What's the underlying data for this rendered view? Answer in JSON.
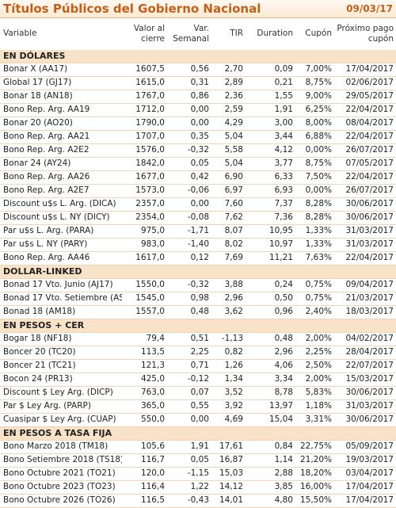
{
  "header": {
    "title": "Títulos Públicos del Gobierno Nacional",
    "date": "09/03/17"
  },
  "columns": [
    "Variable",
    "Valor al cierre",
    "Var. Semanal",
    "TIR",
    "Duration",
    "Cupón",
    "Próximo pago cupón"
  ],
  "sections": [
    {
      "title": "EN DÓLARES",
      "rows": [
        [
          "Bonar X (AA17)",
          "1607,5",
          "0,56",
          "2,70",
          "0,09",
          "7,00%",
          "17/04/2017"
        ],
        [
          "Global 17 (GJ17)",
          "1615,0",
          "0,31",
          "2,89",
          "0,21",
          "8,75%",
          "02/06/2017"
        ],
        [
          "Bonar 18 (AN18)",
          "1767,0",
          "0,86",
          "2,36",
          "1,55",
          "9,00%",
          "29/05/2017"
        ],
        [
          "Bono Rep. Arg. AA19",
          "1712,0",
          "0,00",
          "2,59",
          "1,91",
          "6,25%",
          "22/04/2017"
        ],
        [
          "Bonar 20 (AO20)",
          "1790,0",
          "0,00",
          "4,29",
          "3,00",
          "8,00%",
          "08/04/2017"
        ],
        [
          "Bono Rep. Arg. AA21",
          "1707,0",
          "0,35",
          "5,04",
          "3,44",
          "6,88%",
          "22/04/2017"
        ],
        [
          "Bono Rep. Arg. A2E2",
          "1576,0",
          "-0,32",
          "5,58",
          "4,12",
          "0,00%",
          "26/07/2017"
        ],
        [
          "Bonar 24 (AY24)",
          "1842,0",
          "0,05",
          "5,04",
          "3,77",
          "8,75%",
          "07/05/2017"
        ],
        [
          "Bono Rep. Arg. AA26",
          "1677,0",
          "0,42",
          "6,90",
          "6,33",
          "7,50%",
          "22/04/2017"
        ],
        [
          "Bono Rep. Arg. A2E7",
          "1573,0",
          "-0,06",
          "6,97",
          "6,93",
          "0,00%",
          "26/07/2017"
        ],
        [
          "Discount u$s L. Arg. (DICA)",
          "2357,0",
          "0,00",
          "7,60",
          "7,37",
          "8,28%",
          "30/06/2017"
        ],
        [
          "Discount u$s L. NY (DICY)",
          "2354,0",
          "-0,08",
          "7,62",
          "7,36",
          "8,28%",
          "30/06/2017"
        ],
        [
          "Par u$s L. Arg. (PARA)",
          "975,0",
          "-1,71",
          "8,07",
          "10,95",
          "1,33%",
          "31/03/2017"
        ],
        [
          "Par u$s L. NY (PARY)",
          "983,0",
          "-1,40",
          "8,02",
          "10,97",
          "1,33%",
          "31/03/2017"
        ],
        [
          "Bono Rep. Arg. AA46",
          "1617,0",
          "0,12",
          "7,69",
          "11,21",
          "7,63%",
          "22/04/2017"
        ]
      ]
    },
    {
      "title": "DOLLAR-LINKED",
      "rows": [
        [
          "Bonad 17 Vto. Junio (AJ17)",
          "1550,0",
          "-0,32",
          "3,88",
          "0,24",
          "0,75%",
          "09/04/2017"
        ],
        [
          "Bonad 17 Vto. Setiembre (AS",
          "1545,0",
          "0,98",
          "2,96",
          "0,50",
          "0,75%",
          "21/03/2017"
        ],
        [
          "Bonad 18 (AM18)",
          "1557,0",
          "0,48",
          "3,62",
          "0,96",
          "2,40%",
          "18/03/2017"
        ]
      ]
    },
    {
      "title": "EN PESOS + CER",
      "rows": [
        [
          "Bogar 18 (NF18)",
          "79,4",
          "0,51",
          "-1,13",
          "0,48",
          "2,00%",
          "04/02/2017"
        ],
        [
          "Boncer 20 (TC20)",
          "113,5",
          "2,25",
          "0,82",
          "2,96",
          "2,25%",
          "28/04/2017"
        ],
        [
          "Boncer 21 (TC21)",
          "121,3",
          "0,71",
          "1,26",
          "4,06",
          "2,50%",
          "22/07/2017"
        ],
        [
          "Bocon 24 (PR13)",
          "425,0",
          "-0,12",
          "1,34",
          "3,34",
          "2,00%",
          "15/03/2017"
        ],
        [
          "Discount $ Ley Arg. (DICP)",
          "763,0",
          "0,07",
          "3,52",
          "8,78",
          "5,83%",
          "30/06/2017"
        ],
        [
          "Par $ Ley Arg. (PARP)",
          "365,0",
          "0,55",
          "3,92",
          "13,97",
          "1,18%",
          "31/03/2017"
        ],
        [
          "Cuasipar $ Ley Arg. (CUAP)",
          "550,0",
          "0,00",
          "4,69",
          "15,04",
          "3,31%",
          "30/06/2017"
        ]
      ]
    },
    {
      "title": "EN PESOS A TASA FIJA",
      "rows": [
        [
          "Bono Marzo 2018 (TM18)",
          "105,6",
          "1,91",
          "17,61",
          "0,84",
          "22,75%",
          "05/09/2017"
        ],
        [
          "Bono Setiembre 2018 (TS18)",
          "116,7",
          "0,05",
          "16,87",
          "1,14",
          "21,20%",
          "19/03/2017"
        ],
        [
          "Bono Octubre 2021 (TO21)",
          "120,0",
          "-1,15",
          "15,03",
          "2,88",
          "18,20%",
          "03/04/2017"
        ],
        [
          "Bono Octubre 2023 (TO23)",
          "116,4",
          "1,22",
          "14,12",
          "3,85",
          "16,00%",
          "17/04/2017"
        ],
        [
          "Bono Octubre 2026 (TO26)",
          "116,5",
          "-0,43",
          "14,01",
          "4,80",
          "15,50%",
          "17/04/2017"
        ]
      ]
    }
  ]
}
